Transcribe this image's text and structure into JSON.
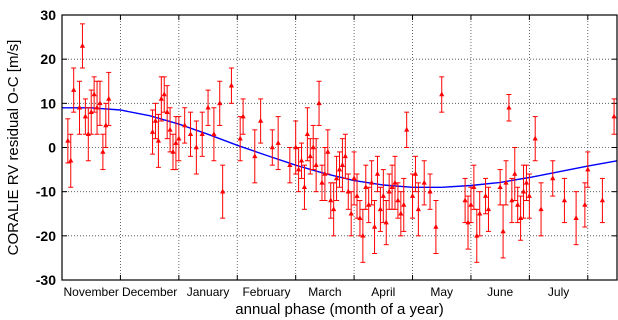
{
  "chart_data": {
    "type": "scatter",
    "title": "",
    "xlabel": "annual phase (month of a year)",
    "ylabel": "CORALIE RV residual O-C [m/s]",
    "ylim": [
      -30,
      30
    ],
    "xlim": [
      0,
      9.5
    ],
    "grid": true,
    "y_ticks": [
      -30,
      -20,
      -10,
      0,
      10,
      20,
      30
    ],
    "months": [
      "November",
      "December",
      "January",
      "February",
      "March",
      "April",
      "May",
      "June",
      "July"
    ],
    "colors": {
      "points": "#ff0000",
      "fit": "#0000ff",
      "grid": "#444444",
      "frame": "#000000"
    },
    "series": [
      {
        "type": "scatter",
        "x": [
          0.1,
          0.15,
          0.2,
          0.3,
          0.35,
          0.4,
          0.45,
          0.5,
          0.55,
          0.6,
          0.65,
          0.7,
          0.75,
          0.8,
          1.55,
          1.6,
          1.65,
          1.7,
          1.75,
          1.8,
          1.85,
          1.9,
          1.95,
          2.0,
          2.1,
          2.2,
          2.3,
          2.4,
          2.5,
          2.6,
          2.7,
          2.75,
          2.9,
          3.05,
          3.1,
          3.3,
          3.4,
          3.6,
          3.7,
          3.9,
          4.0,
          4.05,
          4.1,
          4.15,
          4.2,
          4.25,
          4.3,
          4.35,
          4.4,
          4.45,
          4.5,
          4.55,
          4.6,
          4.65,
          4.7,
          4.75,
          4.8,
          4.85,
          4.9,
          4.95,
          5.0,
          5.05,
          5.1,
          5.15,
          5.2,
          5.25,
          5.3,
          5.35,
          5.4,
          5.45,
          5.5,
          5.55,
          5.6,
          5.65,
          5.7,
          5.75,
          5.8,
          5.85,
          5.9,
          6.0,
          6.05,
          6.1,
          6.2,
          6.3,
          6.4,
          6.5,
          6.9,
          6.95,
          7.0,
          7.05,
          7.1,
          7.15,
          7.25,
          7.3,
          7.5,
          7.55,
          7.6,
          7.65,
          7.7,
          7.75,
          7.8,
          7.85,
          7.9,
          7.95,
          8.0,
          8.1,
          8.2,
          8.4,
          8.6,
          8.8,
          8.95,
          9.0,
          9.25,
          9.45
        ],
        "y": [
          1.5,
          -3,
          13,
          9,
          23,
          7,
          3,
          8,
          12,
          9,
          10,
          -1,
          5,
          11,
          3.5,
          6,
          1.5,
          11,
          12,
          8,
          4,
          -1,
          1,
          2,
          5,
          3,
          0,
          3,
          9,
          3,
          10,
          -10,
          14,
          2,
          7,
          -2,
          6,
          0,
          1,
          -4,
          0,
          -5,
          -3,
          -9,
          3,
          -2,
          0,
          -4,
          10,
          -8,
          -6,
          -1,
          -12,
          -14,
          -7,
          -5,
          -4,
          -2,
          -10,
          -15,
          -7,
          -11,
          -16,
          -20,
          -9,
          -13,
          -8,
          -18,
          -6,
          -14,
          -11,
          -17,
          -10,
          -9,
          -8,
          -12,
          -15,
          -13,
          4,
          -11,
          -6,
          -14,
          -8,
          -10,
          -18,
          12,
          -12,
          -17,
          -13,
          -9,
          -20,
          -15,
          -11,
          -14,
          -9,
          -19,
          -8,
          9,
          -12,
          -6,
          -13,
          -16,
          -10,
          -8,
          -11,
          2,
          -14,
          -7,
          -12,
          -16,
          -13,
          -5,
          -12,
          7
        ],
        "err": [
          5,
          6,
          5,
          6,
          5,
          4,
          6,
          5,
          4,
          6,
          5,
          4,
          5,
          6,
          5,
          4,
          6,
          5,
          4,
          6,
          5,
          4,
          6,
          5,
          4,
          5,
          6,
          5,
          4,
          6,
          5,
          6,
          4,
          5,
          4,
          6,
          5,
          4,
          6,
          4,
          6,
          5,
          4,
          5,
          6,
          4,
          5,
          6,
          5,
          4,
          6,
          5,
          4,
          6,
          5,
          4,
          6,
          5,
          4,
          5,
          6,
          5,
          4,
          6,
          5,
          4,
          5,
          6,
          4,
          5,
          6,
          5,
          4,
          5,
          6,
          4,
          5,
          6,
          4,
          5,
          4,
          6,
          5,
          4,
          6,
          4,
          5,
          6,
          4,
          5,
          6,
          5,
          4,
          5,
          4,
          6,
          5,
          3,
          5,
          6,
          4,
          5,
          6,
          4,
          5,
          5,
          6,
          4,
          5,
          6,
          5,
          4,
          5,
          4
        ]
      },
      {
        "type": "line",
        "x": [
          0,
          0.5,
          1.0,
          1.5,
          2.0,
          2.5,
          3.0,
          3.5,
          4.0,
          4.5,
          5.0,
          5.5,
          6.0,
          6.5,
          7.0,
          7.5,
          8.0,
          8.5,
          9.0,
          9.5
        ],
        "y": [
          9,
          9,
          8.5,
          7.2,
          5.3,
          3.0,
          0.5,
          -1.8,
          -4.0,
          -5.9,
          -7.5,
          -8.5,
          -9.0,
          -9.0,
          -8.6,
          -7.9,
          -6.8,
          -5.5,
          -4.2,
          -3
        ]
      }
    ]
  }
}
